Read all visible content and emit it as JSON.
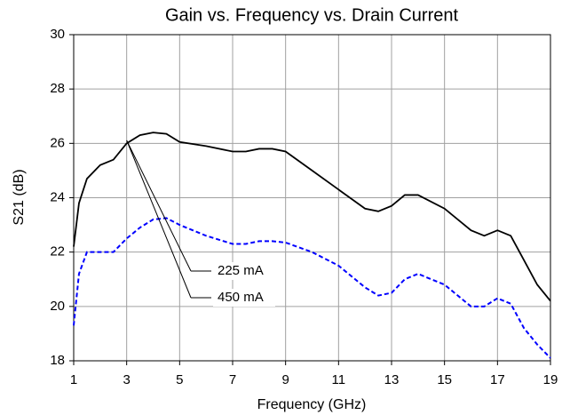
{
  "chart_data": {
    "type": "line",
    "title": "Gain vs. Frequency vs. Drain Current",
    "x_label": "Frequency (GHz)",
    "y_label": "S21 (dB)",
    "xlim": [
      1,
      19
    ],
    "ylim": [
      18,
      30
    ],
    "xticks": [
      1,
      3,
      5,
      7,
      9,
      11,
      13,
      15,
      17,
      19
    ],
    "yticks": [
      18,
      20,
      22,
      24,
      26,
      28,
      30
    ],
    "grid": true,
    "x": [
      1,
      1.2,
      1.5,
      2,
      2.5,
      3,
      3.5,
      4,
      4.5,
      5,
      6,
      7,
      7.5,
      8,
      8.5,
      9,
      10,
      11,
      12,
      12.5,
      13,
      13.5,
      14,
      15,
      16,
      16.5,
      17,
      17.5,
      18,
      18.5,
      19
    ],
    "series": [
      {
        "name": "225 mA",
        "color": "#0000ff",
        "dashed": true,
        "values": [
          19.3,
          21.2,
          22.0,
          22.0,
          22.0,
          22.5,
          22.9,
          23.2,
          23.25,
          23.0,
          22.6,
          22.3,
          22.3,
          22.4,
          22.4,
          22.35,
          22.0,
          21.5,
          20.7,
          20.4,
          20.5,
          21.0,
          21.2,
          20.8,
          20.0,
          20.0,
          20.3,
          20.1,
          19.2,
          18.6,
          18.1
        ]
      },
      {
        "name": "450 mA",
        "color": "#000000",
        "dashed": false,
        "values": [
          22.2,
          23.8,
          24.7,
          25.2,
          25.4,
          26.0,
          26.3,
          26.4,
          26.35,
          26.05,
          25.9,
          25.7,
          25.7,
          25.8,
          25.8,
          25.7,
          25.0,
          24.3,
          23.6,
          23.5,
          23.7,
          24.1,
          24.1,
          23.6,
          22.8,
          22.6,
          22.8,
          22.6,
          21.7,
          20.8,
          20.2
        ]
      }
    ]
  }
}
